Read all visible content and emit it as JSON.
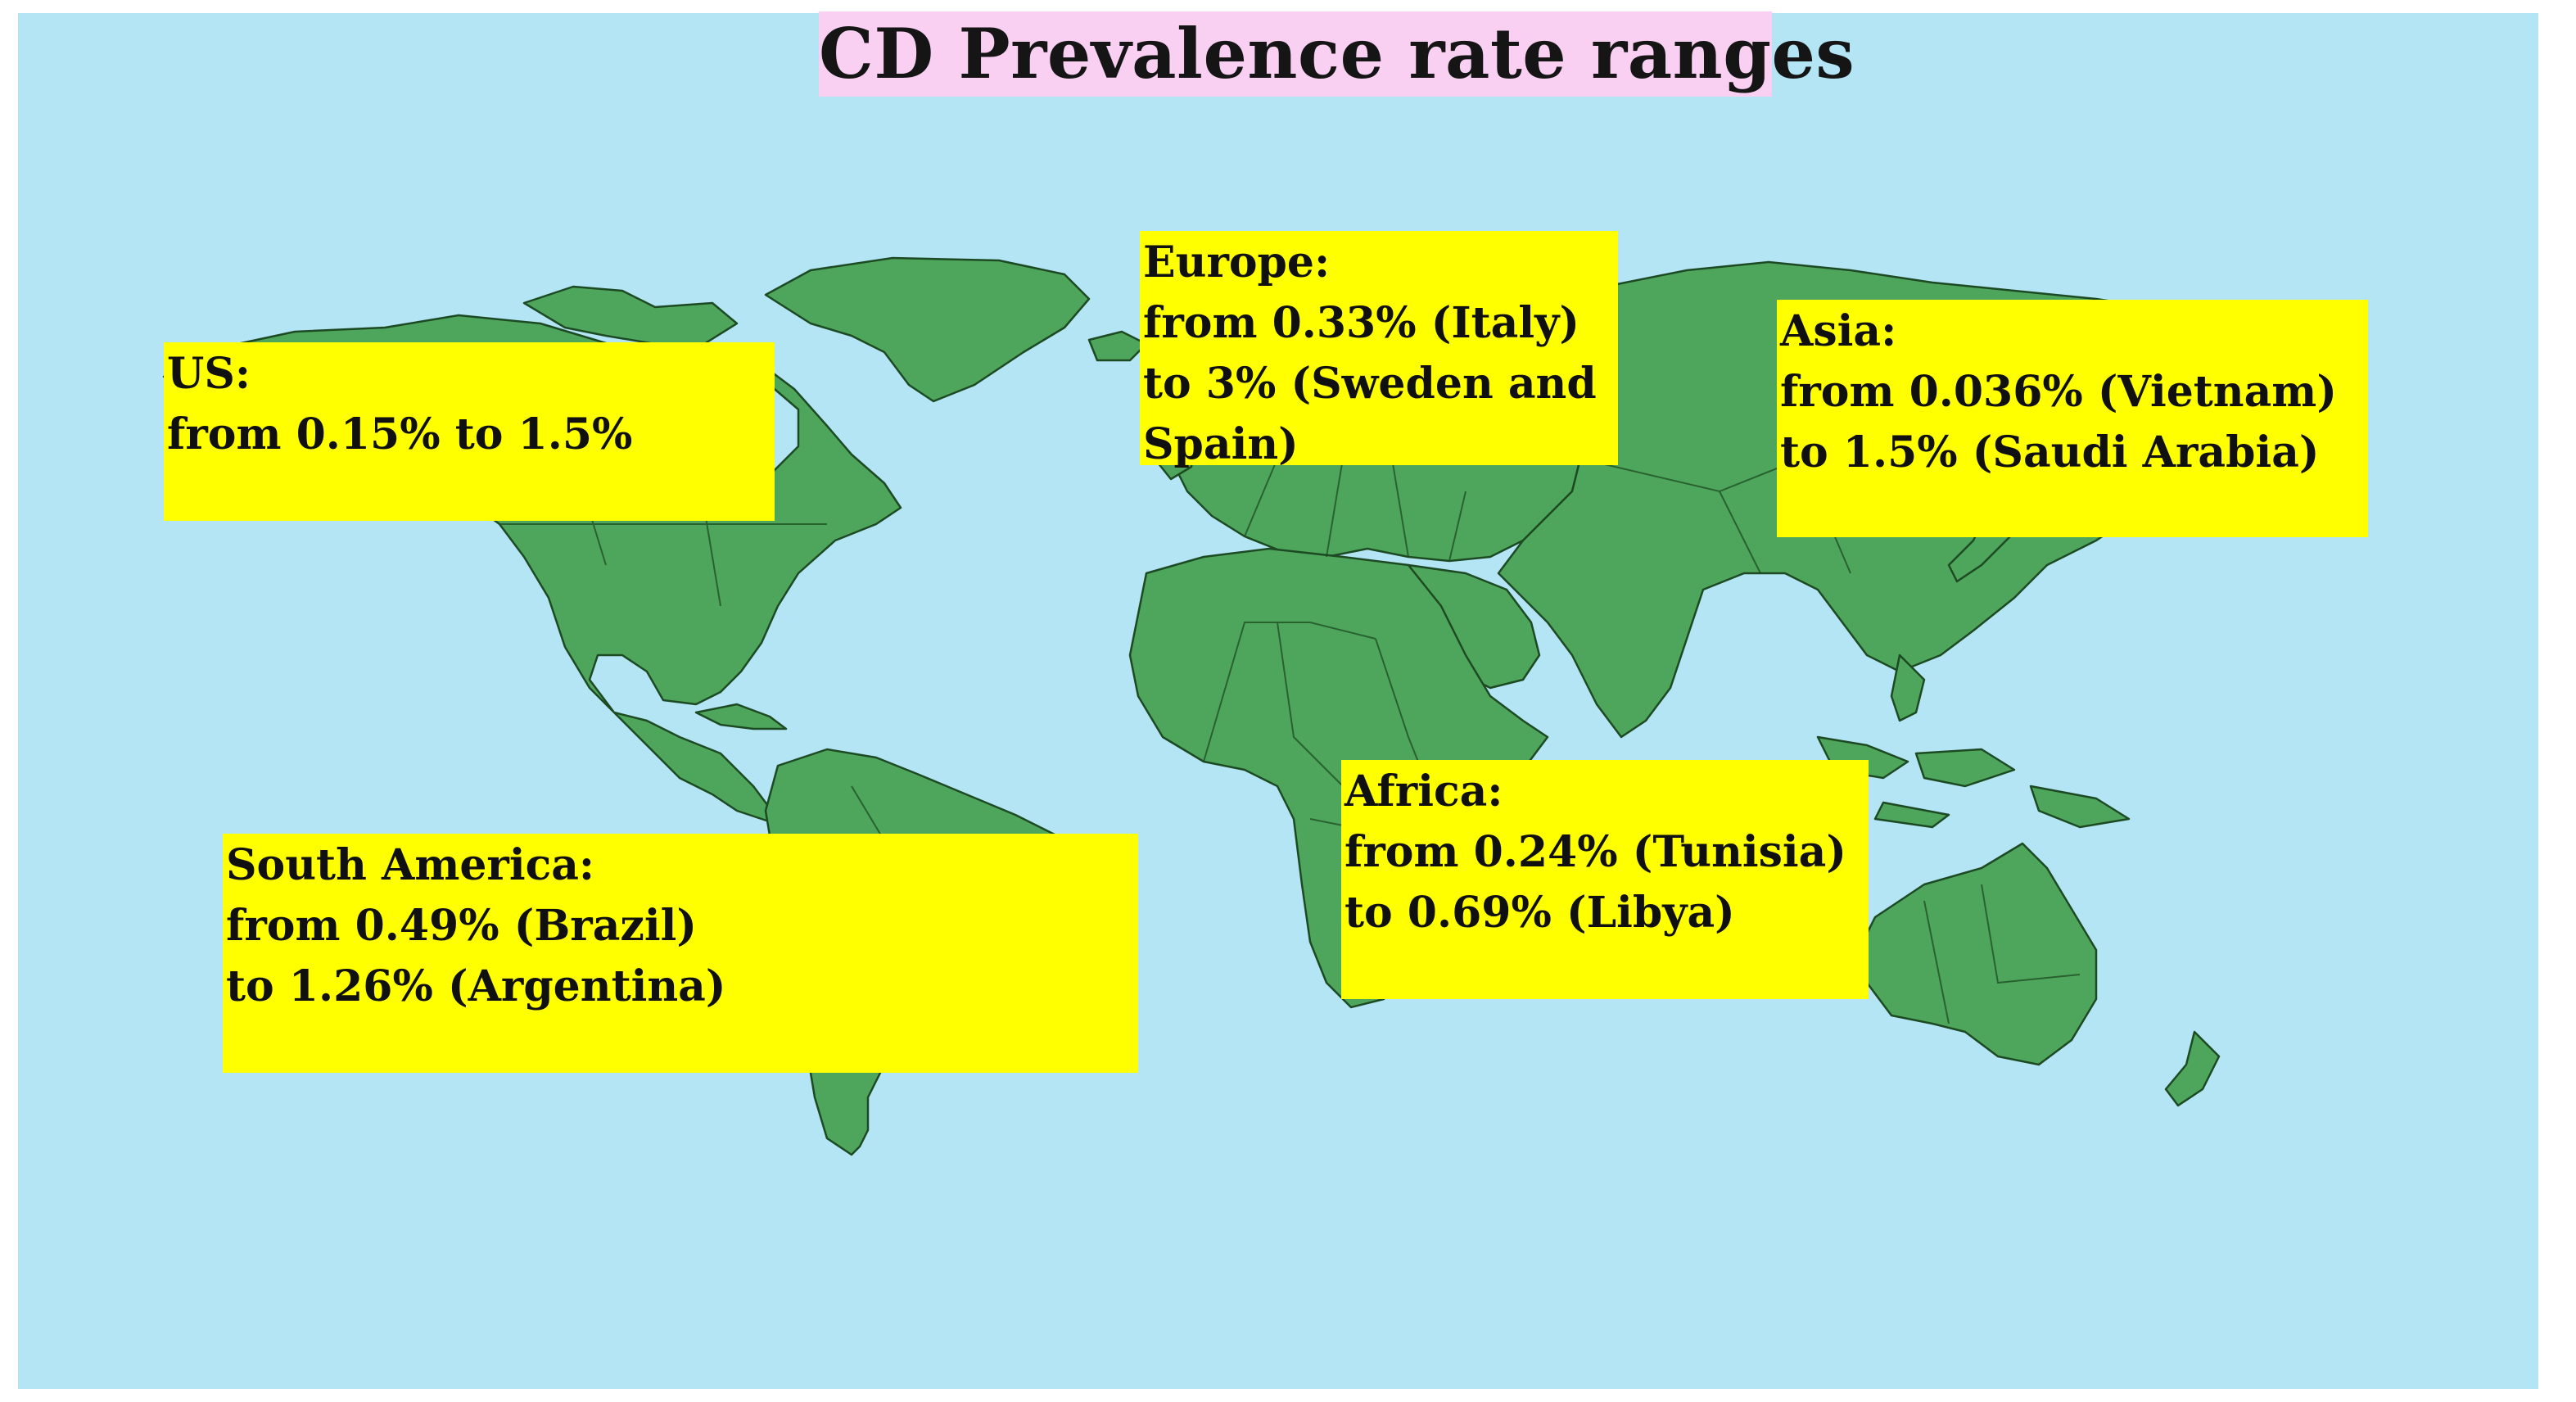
{
  "title": "CD Prevalence rate ranges",
  "colors": {
    "ocean": "#b3e5f5",
    "land": "#4ea65c",
    "land_border": "#1d4a22",
    "title_background": "#f9d0f2",
    "label_background": "#ffff00"
  },
  "regions": [
    {
      "id": "us",
      "name": "US:",
      "lines": [
        "from 0.15% to 1.5%"
      ]
    },
    {
      "id": "europe",
      "name": "Europe:",
      "lines": [
        "from 0.33% (Italy)",
        "to 3% (Sweden and",
        "Spain)"
      ]
    },
    {
      "id": "asia",
      "name": "Asia:",
      "lines": [
        "from 0.036% (Vietnam)",
        "to 1.5% (Saudi Arabia)"
      ]
    },
    {
      "id": "south-america",
      "name": "South America:",
      "lines": [
        "from 0.49% (Brazil)",
        "to 1.26% (Argentina)"
      ]
    },
    {
      "id": "africa",
      "name": "Africa:",
      "lines": [
        "from 0.24% (Tunisia)",
        "to 0.69% (Libya)"
      ]
    }
  ]
}
